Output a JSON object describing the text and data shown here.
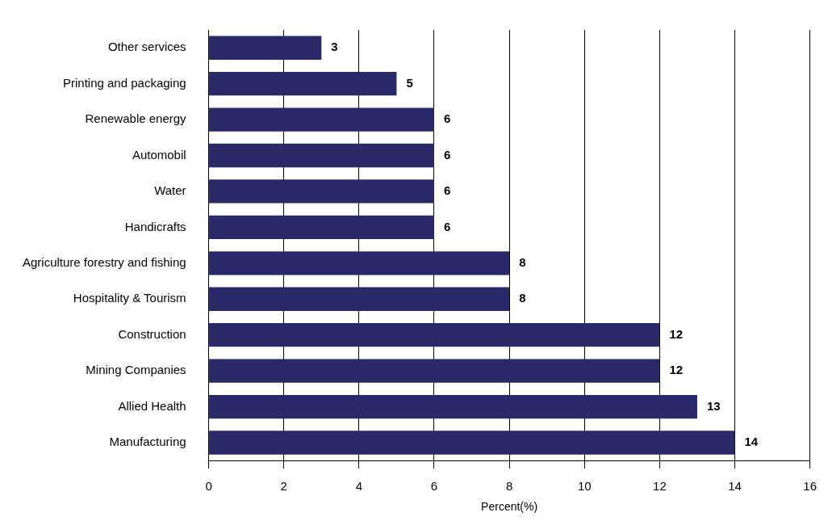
{
  "chart_data": {
    "type": "bar",
    "orientation": "horizontal",
    "xlabel": "Percent(%)",
    "categories": [
      "Other services",
      "Printing and packaging",
      "Renewable energy",
      "Automobil",
      "Water",
      "Handicrafts",
      "Agriculture forestry and fishing",
      "Hospitality & Tourism",
      "Construction",
      "Mining Companies",
      "Allied Health",
      "Manufacturing"
    ],
    "values": [
      3,
      5,
      6,
      6,
      6,
      6,
      8,
      8,
      12,
      12,
      13,
      14
    ],
    "color": "#2b2a68",
    "xlim": [
      0,
      16
    ],
    "xticks": [
      0,
      2,
      4,
      6,
      8,
      10,
      12,
      14,
      16
    ],
    "grid": "x",
    "legend": false,
    "data_labels": true
  }
}
